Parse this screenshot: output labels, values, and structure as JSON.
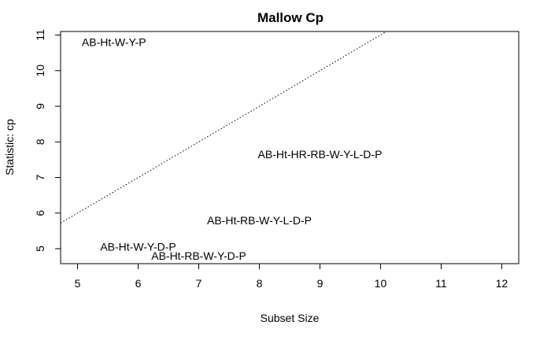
{
  "chart_data": {
    "type": "scatter",
    "title": "Mallow Cp",
    "xlabel": "Subset Size",
    "ylabel": "Statistic: cp",
    "xlim": [
      4.72,
      12.28
    ],
    "ylim": [
      4.58,
      11.1
    ],
    "xticks": [
      5,
      6,
      7,
      8,
      9,
      10,
      11,
      12
    ],
    "yticks": [
      5,
      6,
      7,
      8,
      9,
      10,
      11
    ],
    "points": [
      {
        "label": "AB-Ht-W-Y-P",
        "x": 5.6,
        "y": 10.8
      },
      {
        "label": "AB-Ht-HR-RB-W-Y-L-D-P",
        "x": 9.0,
        "y": 7.65
      },
      {
        "label": "AB-Ht-RB-W-Y-L-D-P",
        "x": 8.0,
        "y": 5.8
      },
      {
        "label": "AB-Ht-W-Y-D-P",
        "x": 6.0,
        "y": 5.05
      },
      {
        "label": "AB-Ht-RB-W-Y-D-P",
        "x": 7.0,
        "y": 4.8
      }
    ],
    "reference_line": {
      "style": "dotted",
      "slope": 1,
      "intercept": 1
    },
    "grid": false,
    "legend": "none"
  }
}
